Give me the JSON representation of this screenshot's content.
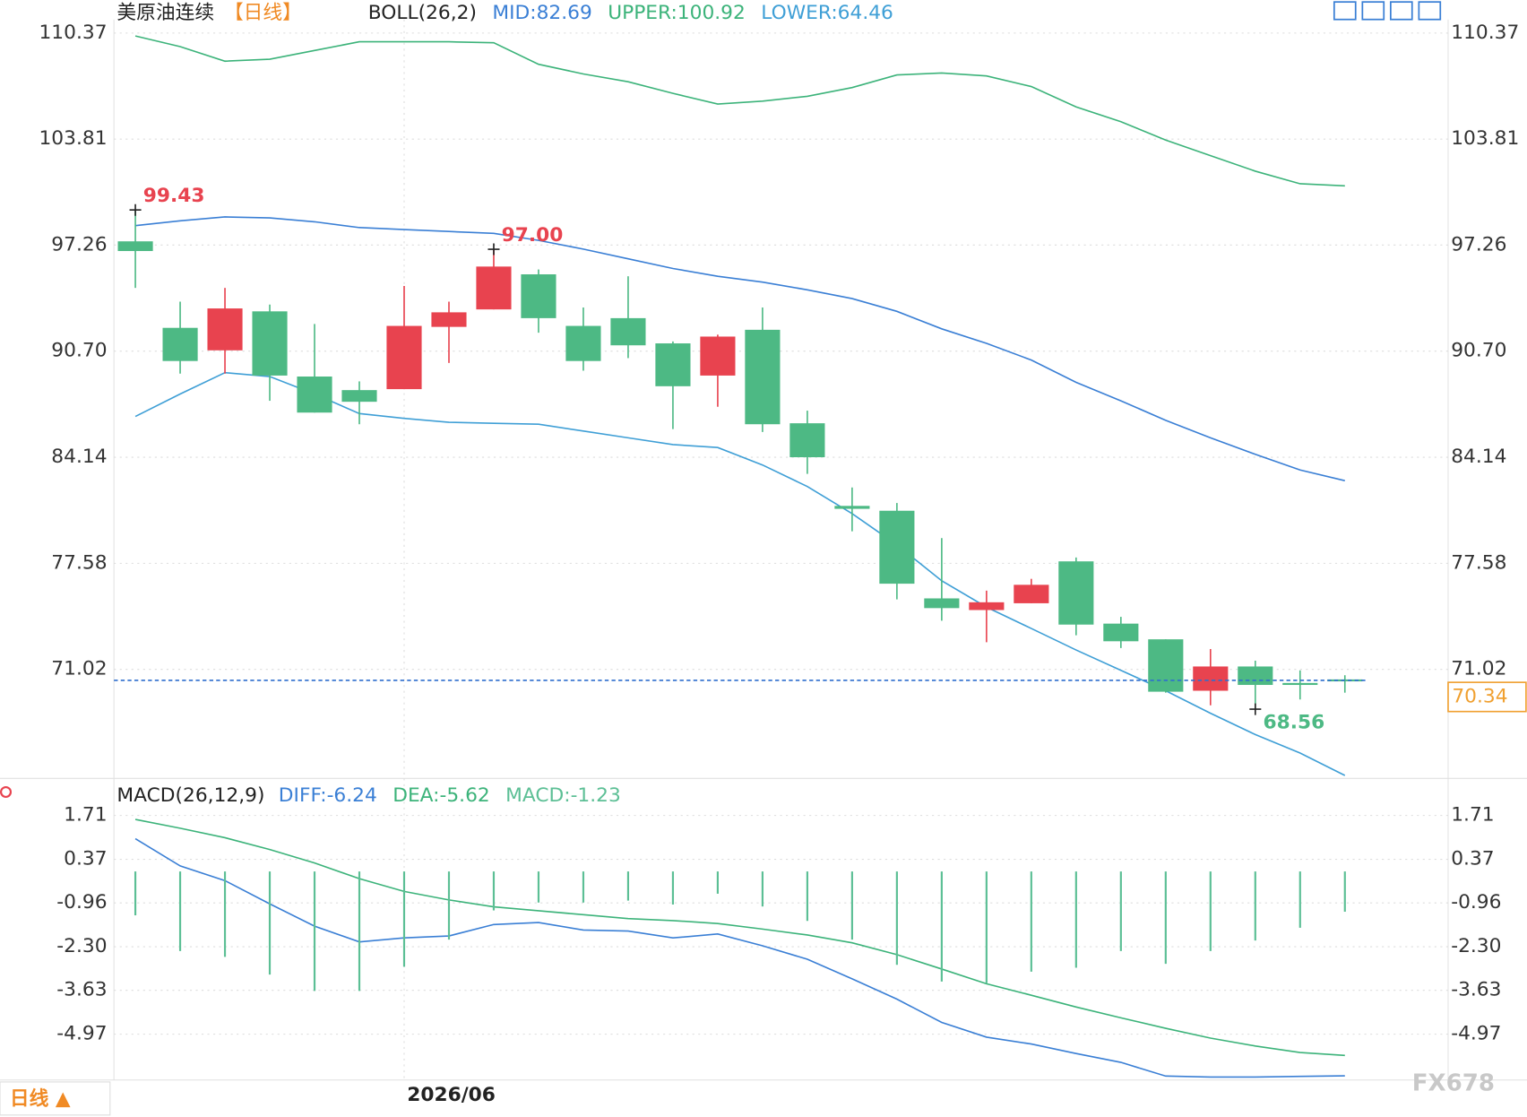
{
  "chart_data": [
    {
      "type": "candlestick",
      "title": "美原油连续",
      "period": "【日线】",
      "categories": [
        null,
        null,
        null,
        null,
        null,
        null,
        "2026/06",
        null,
        null,
        null,
        null,
        null,
        null,
        null,
        null,
        null,
        null,
        null,
        null,
        null,
        null,
        null,
        null,
        null,
        null,
        null,
        null,
        null
      ],
      "open": [
        97.49,
        92.14,
        90.75,
        93.16,
        89.13,
        88.29,
        88.35,
        92.2,
        93.28,
        95.45,
        92.26,
        92.74,
        91.18,
        89.19,
        92.02,
        86.24,
        81.13,
        80.83,
        75.41,
        74.69,
        75.11,
        77.7,
        73.85,
        72.88,
        69.7,
        71.2,
        70.18,
        70.4
      ],
      "high": [
        99.43,
        93.76,
        94.61,
        93.58,
        92.38,
        88.83,
        94.73,
        93.76,
        97.0,
        95.75,
        93.4,
        95.33,
        91.3,
        91.72,
        93.4,
        87.02,
        82.27,
        81.31,
        79.14,
        75.89,
        76.62,
        77.94,
        74.27,
        72.88,
        72.28,
        71.56,
        70.96,
        70.66
      ],
      "low": [
        94.61,
        89.31,
        89.31,
        87.63,
        86.9,
        86.18,
        88.35,
        89.97,
        93.28,
        91.84,
        89.49,
        90.27,
        85.88,
        87.26,
        85.7,
        83.11,
        79.56,
        75.35,
        74.03,
        72.7,
        75.11,
        73.13,
        72.34,
        69.58,
        68.8,
        68.56,
        69.16,
        69.58
      ],
      "close": [
        96.89,
        90.09,
        93.34,
        89.19,
        86.9,
        87.57,
        92.26,
        93.1,
        95.93,
        92.74,
        90.09,
        91.06,
        88.53,
        91.6,
        86.18,
        84.14,
        80.95,
        76.32,
        74.81,
        75.17,
        76.25,
        73.79,
        72.76,
        69.64,
        71.2,
        70.06,
        70.12,
        70.34
      ],
      "up_color": "#e8434f",
      "down_color": "#4db984",
      "series": [
        {
          "name": "MID",
          "color": "#3a7fd5",
          "values": [
            98.46,
            98.76,
            99.0,
            98.94,
            98.7,
            98.34,
            98.22,
            98.1,
            97.98,
            97.55,
            97.01,
            96.41,
            95.81,
            95.33,
            94.97,
            94.49,
            93.95,
            93.16,
            92.08,
            91.18,
            90.15,
            88.77,
            87.63,
            86.42,
            85.34,
            84.32,
            83.35,
            82.69
          ]
        },
        {
          "name": "UPPER",
          "color": "#3cb37a",
          "values": [
            110.19,
            109.53,
            108.63,
            108.75,
            109.29,
            109.83,
            109.83,
            109.83,
            109.77,
            108.44,
            107.84,
            107.36,
            106.64,
            105.98,
            106.16,
            106.46,
            107.0,
            107.78,
            107.9,
            107.72,
            107.06,
            105.8,
            104.89,
            103.75,
            102.79,
            101.83,
            101.05,
            100.92
          ]
        },
        {
          "name": "LOWER",
          "color": "#3f9fd6",
          "values": [
            86.66,
            88.05,
            89.37,
            89.13,
            88.05,
            86.84,
            86.54,
            86.3,
            86.24,
            86.18,
            85.76,
            85.34,
            84.92,
            84.74,
            83.66,
            82.33,
            80.65,
            78.72,
            76.5,
            74.87,
            73.55,
            72.22,
            70.96,
            69.7,
            68.31,
            66.99,
            65.85,
            64.46
          ]
        }
      ],
      "legend": [
        "BOLL(26,2)",
        "MID:82.69",
        "UPPER:100.92",
        "LOWER:64.46"
      ],
      "ylim": [
        64.4,
        111.21
      ],
      "yticks": [
        110.37,
        103.81,
        97.26,
        {
          "value": 90.7,
          "label": "90.70"
        },
        84.14,
        77.58,
        71.02
      ],
      "grid": true,
      "last_price": 70.34,
      "last_price_color": "#f0a030",
      "annotations": [
        99.43,
        {
          "value": 97,
          "label": "97.00"
        },
        68.56
      ]
    },
    {
      "type": "macd",
      "title": "MACD(26,12,9)",
      "legend": [
        "DIFF:-6.24",
        "DEA:-5.62",
        "MACD:-1.23"
      ],
      "series": [
        {
          "name": "DIFF",
          "color": "#3a7fd5",
          "values": [
            1.0,
            0.17,
            -0.28,
            -0.99,
            -1.67,
            -2.15,
            -2.03,
            -1.97,
            -1.62,
            -1.56,
            -1.79,
            -1.82,
            -2.03,
            -1.91,
            -2.27,
            -2.68,
            -3.28,
            -3.9,
            -4.61,
            -5.06,
            -5.27,
            -5.56,
            -5.83,
            -6.25,
            -6.28,
            -6.28,
            -6.26,
            -6.24
          ]
        },
        {
          "name": "DEA",
          "color": "#3cb37a",
          "values": [
            1.59,
            1.32,
            1.03,
            0.67,
            0.26,
            -0.22,
            -0.61,
            -0.87,
            -1.08,
            -1.2,
            -1.32,
            -1.44,
            -1.5,
            -1.59,
            -1.76,
            -1.94,
            -2.18,
            -2.54,
            -2.98,
            -3.43,
            -3.78,
            -4.14,
            -4.47,
            -4.79,
            -5.09,
            -5.33,
            -5.53,
            -5.62
          ]
        },
        {
          "name": "MACD",
          "type": "bar",
          "color": "#5cbf95",
          "values": [
            -1.34,
            -2.43,
            -2.61,
            -3.15,
            -3.65,
            -3.65,
            -2.91,
            -2.08,
            -1.19,
            -0.95,
            -0.95,
            -0.89,
            -1.01,
            -0.68,
            -1.07,
            -1.51,
            -2.08,
            -2.85,
            -3.36,
            -3.41,
            -3.06,
            -2.94,
            -2.43,
            -2.82,
            -2.43,
            -2.11,
            -1.72,
            -1.23
          ]
        }
      ],
      "ylim": [
        -6.37,
        2.01
      ],
      "yticks": [
        1.71,
        0.37,
        -0.96,
        {
          "value": -2.3,
          "label": "-2.30"
        },
        -3.63,
        -4.97
      ],
      "grid": true
    }
  ],
  "footer": {
    "period_button": "日线 ▲",
    "watermark": "FX678"
  }
}
